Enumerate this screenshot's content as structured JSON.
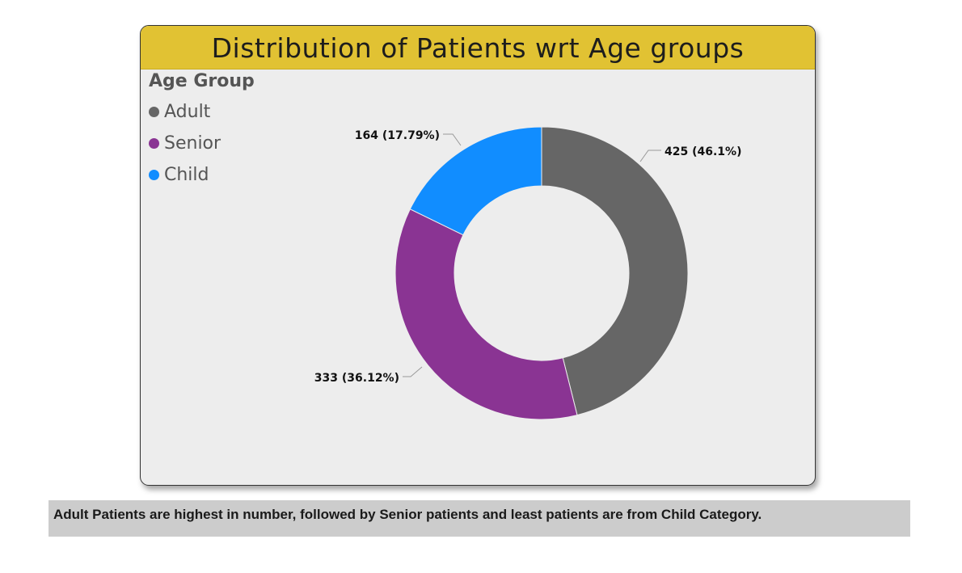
{
  "title": "Distribution of Patients wrt Age groups",
  "legend": {
    "title": "Age Group",
    "items": [
      {
        "label": "Adult",
        "color": "#666666"
      },
      {
        "label": "Senior",
        "color": "#8a3493"
      },
      {
        "label": "Child",
        "color": "#118dff"
      }
    ]
  },
  "chart_data": {
    "type": "pie",
    "variant": "donut",
    "title": "Distribution of Patients wrt Age groups",
    "legend_title": "Age Group",
    "legend_position": "top-left",
    "categories": [
      "Adult",
      "Senior",
      "Child"
    ],
    "values": [
      425,
      333,
      164
    ],
    "percentages": [
      46.1,
      36.12,
      17.79
    ],
    "colors": [
      "#666666",
      "#8a3493",
      "#118dff"
    ],
    "data_labels": [
      "425 (46.1%)",
      "333 (36.12%)",
      "164 (17.79%)"
    ]
  },
  "insight": "Adult Patients are highest in number, followed by Senior patients and least patients are from Child Category."
}
